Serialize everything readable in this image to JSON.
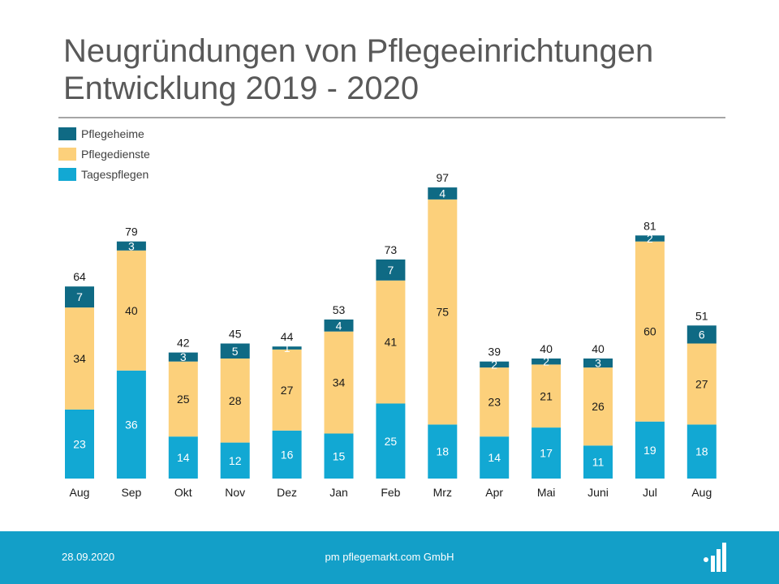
{
  "title": {
    "line1": "Neugründungen von Pflegeeinrichtungen",
    "line2": "Entwicklung 2019 - 2020"
  },
  "colors": {
    "pflegeheime": "#0f6a84",
    "pflegedienste": "#fcd07b",
    "tagespflegen": "#12a8d3",
    "footer": "#139fc8",
    "rule": "#a6a6a6",
    "text": "#1a1a1a"
  },
  "chart_data": {
    "type": "bar",
    "stacked": true,
    "categories": [
      "Aug",
      "Sep",
      "Okt",
      "Nov",
      "Dez",
      "Jan",
      "Feb",
      "Mrz",
      "Apr",
      "Mai",
      "Juni",
      "Jul",
      "Aug"
    ],
    "series": [
      {
        "name": "Tagespflegen",
        "values": [
          23,
          36,
          14,
          12,
          16,
          15,
          25,
          18,
          14,
          17,
          11,
          19,
          18
        ]
      },
      {
        "name": "Pflegedienste",
        "values": [
          34,
          40,
          25,
          28,
          27,
          34,
          41,
          75,
          23,
          21,
          26,
          60,
          27
        ]
      },
      {
        "name": "Pflegeheime",
        "values": [
          7,
          3,
          3,
          5,
          1,
          4,
          7,
          4,
          2,
          2,
          3,
          2,
          6
        ]
      }
    ],
    "totals": [
      64,
      79,
      42,
      45,
      44,
      53,
      73,
      97,
      39,
      40,
      40,
      81,
      51
    ],
    "legend": [
      "Pflegeheime",
      "Pflegedienste",
      "Tagespflegen"
    ],
    "legend_position": "top-left",
    "ylim": [
      0,
      100
    ],
    "grid": false,
    "xlabel": "",
    "ylabel": ""
  },
  "footer": {
    "date": "28.09.2020",
    "company": "pm pflegemarkt.com GmbH",
    "logo_icon": "pflegemarkt-logo-icon"
  }
}
